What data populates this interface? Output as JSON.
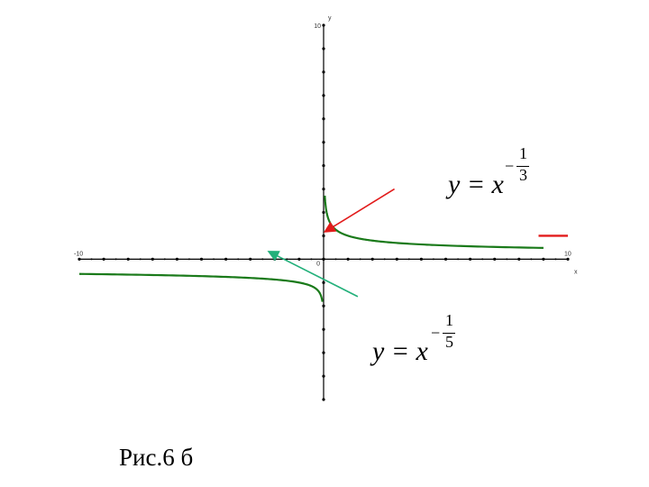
{
  "chart_data": {
    "type": "line",
    "xlim": [
      -10,
      10
    ],
    "ylim": [
      -6,
      10
    ],
    "axis_labels": {
      "x": "x",
      "y": "y",
      "origin": "0"
    },
    "tick_labels": {
      "x_min": "-10",
      "x_max": "10",
      "y_max": "10"
    },
    "grid": false,
    "series": [
      {
        "name": "y = x^(-1/3)",
        "color": "#1a7a1a",
        "domain": "x>0",
        "exponent": -0.333333,
        "x_range": [
          0.05,
          9.0
        ]
      },
      {
        "name": "y = x^(-1/5)",
        "color": "#1a7a1a",
        "domain": "x<0",
        "exponent": -0.2,
        "x_range": [
          -10.0,
          -0.05
        ]
      }
    ],
    "highlight_segment": {
      "color": "#e21b1b",
      "x_range": [
        8.8,
        10.0
      ],
      "y": 1.0
    },
    "annotations": [
      {
        "kind": "arrow",
        "color": "#e21b1b",
        "from": [
          2.9,
          3.0
        ],
        "to": [
          0.1,
          1.2
        ]
      },
      {
        "kind": "arrow",
        "color": "#22b07a",
        "from": [
          1.4,
          -1.6
        ],
        "to": [
          -2.2,
          0.3
        ]
      }
    ]
  },
  "formulas": {
    "f1": {
      "lhs": "y = x",
      "sign": "−",
      "num": "1",
      "den": "3"
    },
    "f2": {
      "lhs": "y = x",
      "sign": "−",
      "num": "1",
      "den": "5"
    }
  },
  "caption": "Рис.6 б"
}
